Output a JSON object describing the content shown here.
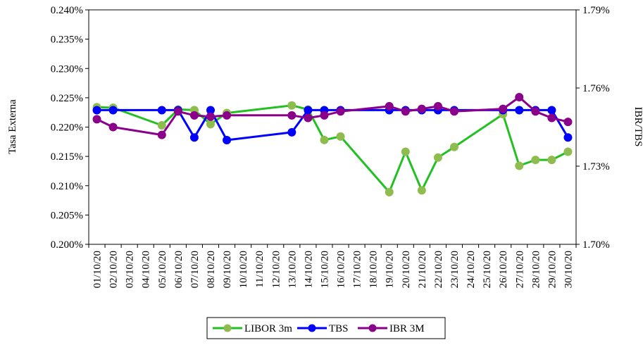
{
  "chart_data": {
    "type": "line",
    "title": "",
    "ylabel_left": "Tasa Externa",
    "ylabel_right": "IBR/TBS",
    "x": [
      "01/10/20",
      "02/10/20",
      "03/10/20",
      "04/10/20",
      "05/10/20",
      "06/10/20",
      "07/10/20",
      "08/10/20",
      "09/10/20",
      "10/10/20",
      "11/10/20",
      "12/10/20",
      "13/10/20",
      "14/10/20",
      "15/10/20",
      "16/10/20",
      "17/10/20",
      "18/10/20",
      "19/10/20",
      "20/10/20",
      "21/10/20",
      "22/10/20",
      "23/10/20",
      "24/10/20",
      "25/10/20",
      "26/10/20",
      "27/10/20",
      "28/10/20",
      "29/10/20",
      "30/10/20"
    ],
    "y_left": {
      "min": 0.2,
      "max": 0.24,
      "step": 0.005,
      "tick_labels": [
        "0.200%",
        "0.205%",
        "0.210%",
        "0.215%",
        "0.220%",
        "0.225%",
        "0.230%",
        "0.235%",
        "0.240%"
      ]
    },
    "y_right": {
      "min": 1.7,
      "max": 1.79,
      "step": 0.03,
      "tick_labels": [
        "1.70%",
        "1.73%",
        "1.76%",
        "1.79%"
      ]
    },
    "series": [
      {
        "name": "LIBOR 3m",
        "axis": "left",
        "color": "#22c022",
        "marker_color": "#8fbc4f",
        "points": [
          [
            0,
            0.2234
          ],
          [
            1,
            0.2233
          ],
          [
            4,
            0.2203
          ],
          [
            5,
            0.223
          ],
          [
            6,
            0.2229
          ],
          [
            7,
            0.2205
          ],
          [
            8,
            0.2224
          ],
          [
            12,
            0.2237
          ],
          [
            13,
            0.223
          ],
          [
            14,
            0.2178
          ],
          [
            15,
            0.2184
          ],
          [
            18,
            0.2089
          ],
          [
            19,
            0.2158
          ],
          [
            20,
            0.2092
          ],
          [
            21,
            0.2148
          ],
          [
            22,
            0.2166
          ],
          [
            25,
            0.2222
          ],
          [
            26,
            0.2134
          ],
          [
            27,
            0.2144
          ],
          [
            28,
            0.2144
          ],
          [
            29,
            0.2158
          ]
        ]
      },
      {
        "name": "TBS",
        "axis": "right",
        "color": "#0000ff",
        "marker_color": "#0000ff",
        "points": [
          [
            0,
            1.7515
          ],
          [
            1,
            1.7515
          ],
          [
            4,
            1.7515
          ],
          [
            5,
            1.7515
          ],
          [
            6,
            1.741
          ],
          [
            7,
            1.7515
          ],
          [
            8,
            1.74
          ],
          [
            12,
            1.743
          ],
          [
            13,
            1.7515
          ],
          [
            14,
            1.7515
          ],
          [
            15,
            1.7515
          ],
          [
            18,
            1.7515
          ],
          [
            19,
            1.7515
          ],
          [
            20,
            1.7515
          ],
          [
            21,
            1.7515
          ],
          [
            22,
            1.7515
          ],
          [
            25,
            1.7515
          ],
          [
            26,
            1.7515
          ],
          [
            27,
            1.7515
          ],
          [
            28,
            1.7515
          ],
          [
            29,
            1.741
          ]
        ]
      },
      {
        "name": "IBR 3M",
        "axis": "right",
        "color": "#8b008b",
        "marker_color": "#8b008b",
        "points": [
          [
            0,
            1.748
          ],
          [
            1,
            1.745
          ],
          [
            4,
            1.742
          ],
          [
            5,
            1.751
          ],
          [
            6,
            1.7495
          ],
          [
            7,
            1.749
          ],
          [
            8,
            1.7495
          ],
          [
            12,
            1.7495
          ],
          [
            13,
            1.7485
          ],
          [
            14,
            1.7495
          ],
          [
            15,
            1.751
          ],
          [
            18,
            1.753
          ],
          [
            19,
            1.751
          ],
          [
            20,
            1.752
          ],
          [
            21,
            1.753
          ],
          [
            22,
            1.751
          ],
          [
            25,
            1.752
          ],
          [
            26,
            1.7565
          ],
          [
            27,
            1.751
          ],
          [
            28,
            1.7485
          ],
          [
            29,
            1.747
          ]
        ]
      }
    ],
    "legend": {
      "position": "bottom",
      "entries": [
        "LIBOR 3m",
        "TBS",
        "IBR 3M"
      ]
    },
    "grid": false
  }
}
